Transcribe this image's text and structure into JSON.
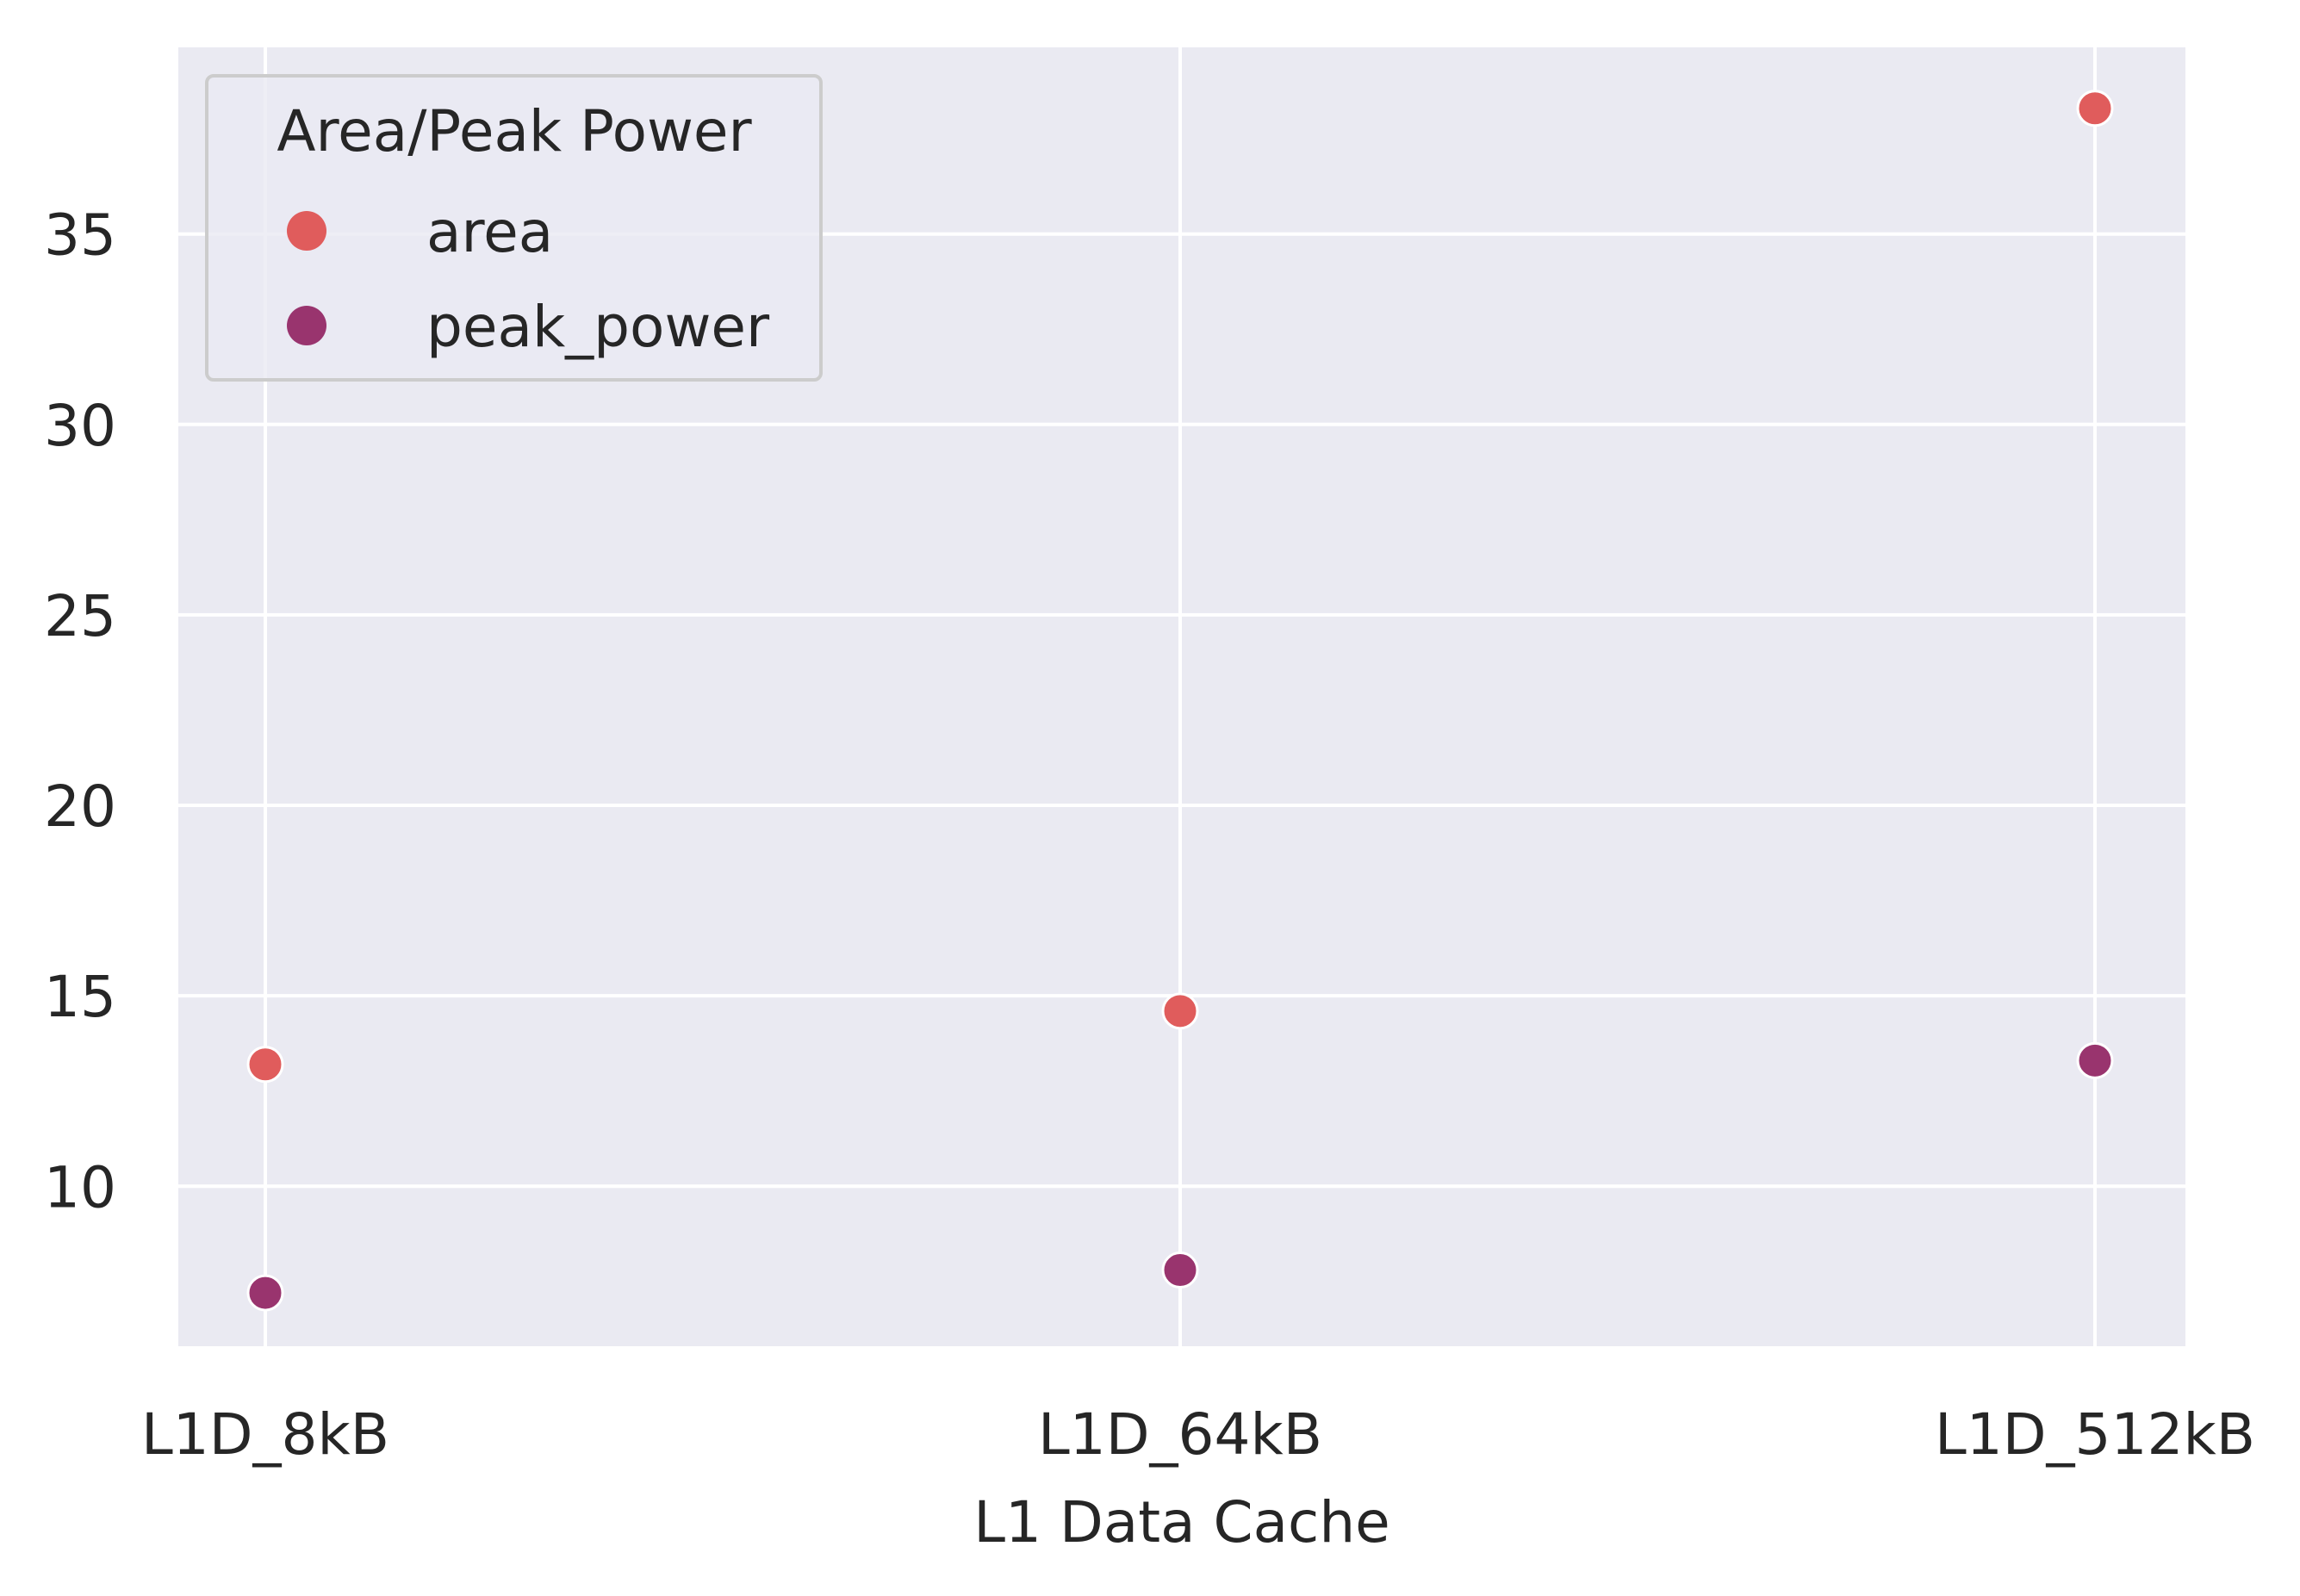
{
  "chart_data": {
    "type": "scatter",
    "title": "",
    "xlabel": "L1 Data Cache",
    "ylabel": "",
    "categories": [
      "L1D_8kB",
      "L1D_64kB",
      "L1D_512kB"
    ],
    "yticks": [
      10,
      15,
      20,
      25,
      30,
      35
    ],
    "ylim": [
      5.8,
      39.9
    ],
    "grid": true,
    "legend": {
      "title": "Area/Peak Power",
      "placement": "top-left"
    },
    "series": [
      {
        "name": "area",
        "color": "#e05c5c",
        "values": [
          13.2,
          14.6,
          38.3
        ]
      },
      {
        "name": "peak_power",
        "color": "#99346e",
        "values": [
          7.2,
          7.8,
          13.3
        ]
      }
    ],
    "background_color": "#eaeaf2",
    "grid_color": "#ffffff"
  }
}
